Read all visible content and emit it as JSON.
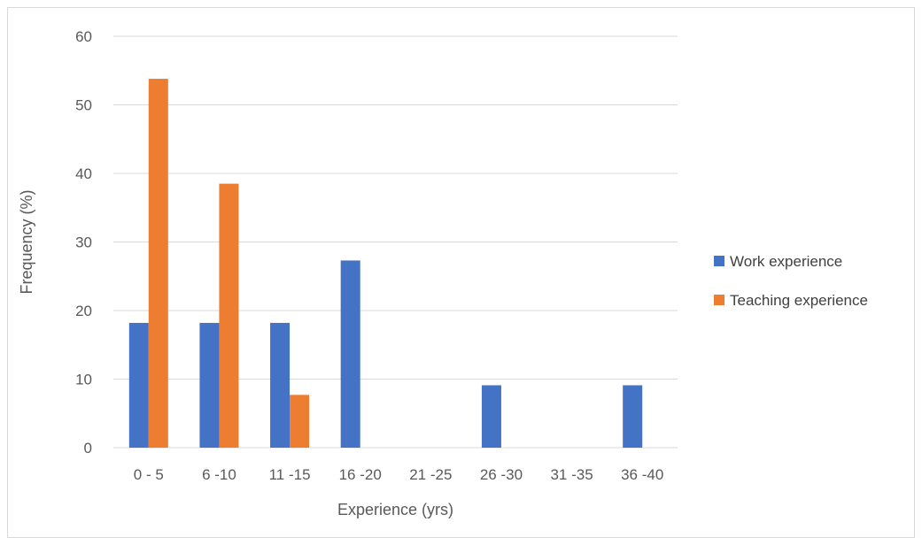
{
  "chart_data": {
    "type": "bar",
    "title": "",
    "xlabel": "Experience (yrs)",
    "ylabel": "Frequency (%)",
    "ylim": [
      0,
      60
    ],
    "yticks": [
      0,
      10,
      20,
      30,
      40,
      50,
      60
    ],
    "grid": true,
    "legend_position": "right",
    "categories": [
      "0 - 5",
      "6 -10",
      "11 -15",
      "16 -20",
      "21 -25",
      "26 -30",
      "31 -35",
      "36 -40"
    ],
    "series": [
      {
        "name": "Work experience",
        "color": "#4472C4",
        "values": [
          18.2,
          18.2,
          18.2,
          27.3,
          0,
          9.1,
          0,
          9.1
        ]
      },
      {
        "name": "Teaching experience",
        "color": "#ED7D31",
        "values": [
          53.8,
          38.5,
          7.7,
          0,
          0,
          0,
          0,
          0
        ]
      }
    ]
  }
}
